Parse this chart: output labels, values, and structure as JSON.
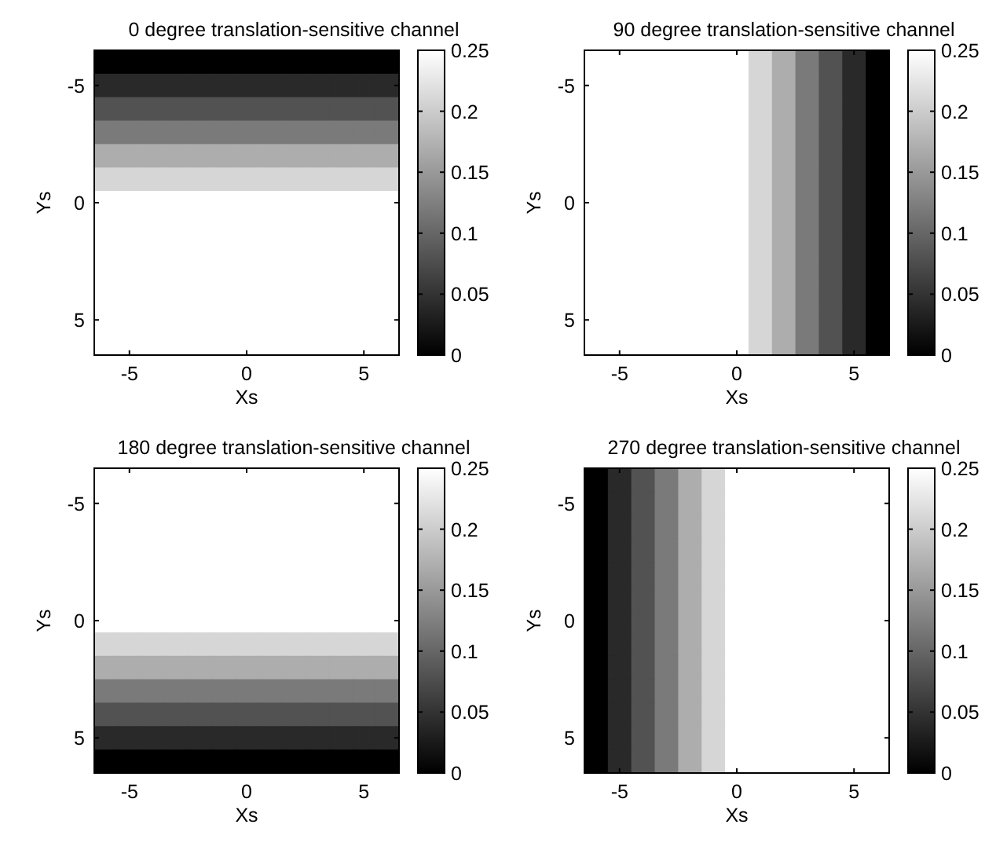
{
  "chart_data": [
    {
      "type": "heatmap",
      "title": "0 degree translation-sensitive channel",
      "xlabel": "Xs",
      "ylabel": "Ys",
      "categories": [
        null,
        "-5",
        null,
        null,
        null,
        null,
        "0",
        null,
        null,
        null,
        null,
        "5",
        null
      ],
      "y_categories": [
        null,
        "-5",
        null,
        null,
        null,
        null,
        "0",
        null,
        null,
        null,
        null,
        "5",
        null
      ],
      "clim": [
        0,
        0.25
      ],
      "cticks": [
        0,
        0.05,
        0.1,
        0.15,
        0.2,
        0.25
      ],
      "cells": [
        [
          0,
          0,
          0,
          0,
          0,
          0,
          0,
          0,
          0,
          0,
          0,
          0,
          0
        ],
        [
          0.04,
          0.04,
          0.04,
          0.04,
          0.04,
          0.04,
          0.04,
          0.04,
          0.04,
          0.04,
          0.04,
          0.04,
          0.04
        ],
        [
          0.08,
          0.08,
          0.08,
          0.08,
          0.08,
          0.08,
          0.08,
          0.08,
          0.08,
          0.08,
          0.08,
          0.08,
          0.08
        ],
        [
          0.12,
          0.12,
          0.12,
          0.12,
          0.12,
          0.12,
          0.12,
          0.12,
          0.12,
          0.12,
          0.12,
          0.12,
          0.12
        ],
        [
          0.17,
          0.17,
          0.17,
          0.17,
          0.17,
          0.17,
          0.17,
          0.17,
          0.17,
          0.17,
          0.17,
          0.17,
          0.17
        ],
        [
          0.21,
          0.21,
          0.21,
          0.21,
          0.21,
          0.21,
          0.21,
          0.21,
          0.21,
          0.21,
          0.21,
          0.21,
          0.21
        ],
        [
          0.25,
          0.25,
          0.25,
          0.25,
          0.25,
          0.25,
          0.25,
          0.25,
          0.25,
          0.25,
          0.25,
          0.25,
          0.25
        ],
        [
          0.25,
          0.25,
          0.25,
          0.25,
          0.25,
          0.25,
          0.25,
          0.25,
          0.25,
          0.25,
          0.25,
          0.25,
          0.25
        ],
        [
          0.25,
          0.25,
          0.25,
          0.25,
          0.25,
          0.25,
          0.25,
          0.25,
          0.25,
          0.25,
          0.25,
          0.25,
          0.25
        ],
        [
          0.25,
          0.25,
          0.25,
          0.25,
          0.25,
          0.25,
          0.25,
          0.25,
          0.25,
          0.25,
          0.25,
          0.25,
          0.25
        ],
        [
          0.25,
          0.25,
          0.25,
          0.25,
          0.25,
          0.25,
          0.25,
          0.25,
          0.25,
          0.25,
          0.25,
          0.25,
          0.25
        ],
        [
          0.25,
          0.25,
          0.25,
          0.25,
          0.25,
          0.25,
          0.25,
          0.25,
          0.25,
          0.25,
          0.25,
          0.25,
          0.25
        ],
        [
          0.25,
          0.25,
          0.25,
          0.25,
          0.25,
          0.25,
          0.25,
          0.25,
          0.25,
          0.25,
          0.25,
          0.25,
          0.25
        ]
      ]
    },
    {
      "type": "heatmap",
      "title": "90 degree translation-sensitive channel",
      "xlabel": "Xs",
      "ylabel": "Ys",
      "categories": [
        null,
        "-5",
        null,
        null,
        null,
        null,
        "0",
        null,
        null,
        null,
        null,
        "5",
        null
      ],
      "y_categories": [
        null,
        "-5",
        null,
        null,
        null,
        null,
        "0",
        null,
        null,
        null,
        null,
        "5",
        null
      ],
      "clim": [
        0,
        0.25
      ],
      "cticks": [
        0,
        0.05,
        0.1,
        0.15,
        0.2,
        0.25
      ],
      "cells": [
        [
          0.25,
          0.25,
          0.25,
          0.25,
          0.25,
          0.25,
          0.25,
          0.21,
          0.17,
          0.12,
          0.08,
          0.04,
          0
        ],
        [
          0.25,
          0.25,
          0.25,
          0.25,
          0.25,
          0.25,
          0.25,
          0.21,
          0.17,
          0.12,
          0.08,
          0.04,
          0
        ],
        [
          0.25,
          0.25,
          0.25,
          0.25,
          0.25,
          0.25,
          0.25,
          0.21,
          0.17,
          0.12,
          0.08,
          0.04,
          0
        ],
        [
          0.25,
          0.25,
          0.25,
          0.25,
          0.25,
          0.25,
          0.25,
          0.21,
          0.17,
          0.12,
          0.08,
          0.04,
          0
        ],
        [
          0.25,
          0.25,
          0.25,
          0.25,
          0.25,
          0.25,
          0.25,
          0.21,
          0.17,
          0.12,
          0.08,
          0.04,
          0
        ],
        [
          0.25,
          0.25,
          0.25,
          0.25,
          0.25,
          0.25,
          0.25,
          0.21,
          0.17,
          0.12,
          0.08,
          0.04,
          0
        ],
        [
          0.25,
          0.25,
          0.25,
          0.25,
          0.25,
          0.25,
          0.25,
          0.21,
          0.17,
          0.12,
          0.08,
          0.04,
          0
        ],
        [
          0.25,
          0.25,
          0.25,
          0.25,
          0.25,
          0.25,
          0.25,
          0.21,
          0.17,
          0.12,
          0.08,
          0.04,
          0
        ],
        [
          0.25,
          0.25,
          0.25,
          0.25,
          0.25,
          0.25,
          0.25,
          0.21,
          0.17,
          0.12,
          0.08,
          0.04,
          0
        ],
        [
          0.25,
          0.25,
          0.25,
          0.25,
          0.25,
          0.25,
          0.25,
          0.21,
          0.17,
          0.12,
          0.08,
          0.04,
          0
        ],
        [
          0.25,
          0.25,
          0.25,
          0.25,
          0.25,
          0.25,
          0.25,
          0.21,
          0.17,
          0.12,
          0.08,
          0.04,
          0
        ],
        [
          0.25,
          0.25,
          0.25,
          0.25,
          0.25,
          0.25,
          0.25,
          0.21,
          0.17,
          0.12,
          0.08,
          0.04,
          0
        ],
        [
          0.25,
          0.25,
          0.25,
          0.25,
          0.25,
          0.25,
          0.25,
          0.21,
          0.17,
          0.12,
          0.08,
          0.04,
          0
        ]
      ]
    },
    {
      "type": "heatmap",
      "title": "180 degree translation-sensitive channel",
      "xlabel": "Xs",
      "ylabel": "Ys",
      "categories": [
        null,
        "-5",
        null,
        null,
        null,
        null,
        "0",
        null,
        null,
        null,
        null,
        "5",
        null
      ],
      "y_categories": [
        null,
        "-5",
        null,
        null,
        null,
        null,
        "0",
        null,
        null,
        null,
        null,
        "5",
        null
      ],
      "clim": [
        0,
        0.25
      ],
      "cticks": [
        0,
        0.05,
        0.1,
        0.15,
        0.2,
        0.25
      ],
      "cells": [
        [
          0.25,
          0.25,
          0.25,
          0.25,
          0.25,
          0.25,
          0.25,
          0.25,
          0.25,
          0.25,
          0.25,
          0.25,
          0.25
        ],
        [
          0.25,
          0.25,
          0.25,
          0.25,
          0.25,
          0.25,
          0.25,
          0.25,
          0.25,
          0.25,
          0.25,
          0.25,
          0.25
        ],
        [
          0.25,
          0.25,
          0.25,
          0.25,
          0.25,
          0.25,
          0.25,
          0.25,
          0.25,
          0.25,
          0.25,
          0.25,
          0.25
        ],
        [
          0.25,
          0.25,
          0.25,
          0.25,
          0.25,
          0.25,
          0.25,
          0.25,
          0.25,
          0.25,
          0.25,
          0.25,
          0.25
        ],
        [
          0.25,
          0.25,
          0.25,
          0.25,
          0.25,
          0.25,
          0.25,
          0.25,
          0.25,
          0.25,
          0.25,
          0.25,
          0.25
        ],
        [
          0.25,
          0.25,
          0.25,
          0.25,
          0.25,
          0.25,
          0.25,
          0.25,
          0.25,
          0.25,
          0.25,
          0.25,
          0.25
        ],
        [
          0.25,
          0.25,
          0.25,
          0.25,
          0.25,
          0.25,
          0.25,
          0.25,
          0.25,
          0.25,
          0.25,
          0.25,
          0.25
        ],
        [
          0.21,
          0.21,
          0.21,
          0.21,
          0.21,
          0.21,
          0.21,
          0.21,
          0.21,
          0.21,
          0.21,
          0.21,
          0.21
        ],
        [
          0.17,
          0.17,
          0.17,
          0.17,
          0.17,
          0.17,
          0.17,
          0.17,
          0.17,
          0.17,
          0.17,
          0.17,
          0.17
        ],
        [
          0.12,
          0.12,
          0.12,
          0.12,
          0.12,
          0.12,
          0.12,
          0.12,
          0.12,
          0.12,
          0.12,
          0.12,
          0.12
        ],
        [
          0.08,
          0.08,
          0.08,
          0.08,
          0.08,
          0.08,
          0.08,
          0.08,
          0.08,
          0.08,
          0.08,
          0.08,
          0.08
        ],
        [
          0.04,
          0.04,
          0.04,
          0.04,
          0.04,
          0.04,
          0.04,
          0.04,
          0.04,
          0.04,
          0.04,
          0.04,
          0.04
        ],
        [
          0,
          0,
          0,
          0,
          0,
          0,
          0,
          0,
          0,
          0,
          0,
          0,
          0
        ]
      ]
    },
    {
      "type": "heatmap",
      "title": "270 degree translation-sensitive channel",
      "xlabel": "Xs",
      "ylabel": "Ys",
      "categories": [
        null,
        "-5",
        null,
        null,
        null,
        null,
        "0",
        null,
        null,
        null,
        null,
        "5",
        null
      ],
      "y_categories": [
        null,
        "-5",
        null,
        null,
        null,
        null,
        "0",
        null,
        null,
        null,
        null,
        "5",
        null
      ],
      "clim": [
        0,
        0.25
      ],
      "cticks": [
        0,
        0.05,
        0.1,
        0.15,
        0.2,
        0.25
      ],
      "cells": [
        [
          0,
          0.04,
          0.08,
          0.12,
          0.17,
          0.21,
          0.25,
          0.25,
          0.25,
          0.25,
          0.25,
          0.25,
          0.25
        ],
        [
          0,
          0.04,
          0.08,
          0.12,
          0.17,
          0.21,
          0.25,
          0.25,
          0.25,
          0.25,
          0.25,
          0.25,
          0.25
        ],
        [
          0,
          0.04,
          0.08,
          0.12,
          0.17,
          0.21,
          0.25,
          0.25,
          0.25,
          0.25,
          0.25,
          0.25,
          0.25
        ],
        [
          0,
          0.04,
          0.08,
          0.12,
          0.17,
          0.21,
          0.25,
          0.25,
          0.25,
          0.25,
          0.25,
          0.25,
          0.25
        ],
        [
          0,
          0.04,
          0.08,
          0.12,
          0.17,
          0.21,
          0.25,
          0.25,
          0.25,
          0.25,
          0.25,
          0.25,
          0.25
        ],
        [
          0,
          0.04,
          0.08,
          0.12,
          0.17,
          0.21,
          0.25,
          0.25,
          0.25,
          0.25,
          0.25,
          0.25,
          0.25
        ],
        [
          0,
          0.04,
          0.08,
          0.12,
          0.17,
          0.21,
          0.25,
          0.25,
          0.25,
          0.25,
          0.25,
          0.25,
          0.25
        ],
        [
          0,
          0.04,
          0.08,
          0.12,
          0.17,
          0.21,
          0.25,
          0.25,
          0.25,
          0.25,
          0.25,
          0.25,
          0.25
        ],
        [
          0,
          0.04,
          0.08,
          0.12,
          0.17,
          0.21,
          0.25,
          0.25,
          0.25,
          0.25,
          0.25,
          0.25,
          0.25
        ],
        [
          0,
          0.04,
          0.08,
          0.12,
          0.17,
          0.21,
          0.25,
          0.25,
          0.25,
          0.25,
          0.25,
          0.25,
          0.25
        ],
        [
          0,
          0.04,
          0.08,
          0.12,
          0.17,
          0.21,
          0.25,
          0.25,
          0.25,
          0.25,
          0.25,
          0.25,
          0.25
        ],
        [
          0,
          0.04,
          0.08,
          0.12,
          0.17,
          0.21,
          0.25,
          0.25,
          0.25,
          0.25,
          0.25,
          0.25,
          0.25
        ],
        [
          0,
          0.04,
          0.08,
          0.12,
          0.17,
          0.21,
          0.25,
          0.25,
          0.25,
          0.25,
          0.25,
          0.25,
          0.25
        ]
      ]
    }
  ]
}
